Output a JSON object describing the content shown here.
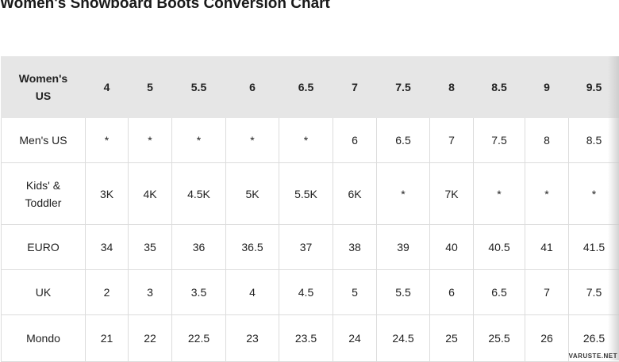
{
  "title": "Women's Snowboard Boots Conversion Chart",
  "header": {
    "label": "Women's US",
    "values": [
      "4",
      "5",
      "5.5",
      "6",
      "6.5",
      "7",
      "7.5",
      "8",
      "8.5",
      "9",
      "9.5"
    ]
  },
  "rows": [
    {
      "label": "Men's US",
      "values": [
        "*",
        "*",
        "*",
        "*",
        "*",
        "6",
        "6.5",
        "7",
        "7.5",
        "8",
        "8.5"
      ]
    },
    {
      "label": "Kids' & Toddler",
      "values": [
        "3K",
        "4K",
        "4.5K",
        "5K",
        "5.5K",
        "6K",
        "*",
        "7K",
        "*",
        "*",
        "*"
      ]
    },
    {
      "label": "EURO",
      "values": [
        "34",
        "35",
        "36",
        "36.5",
        "37",
        "38",
        "39",
        "40",
        "40.5",
        "41",
        "41.5"
      ]
    },
    {
      "label": "UK",
      "values": [
        "2",
        "3",
        "3.5",
        "4",
        "4.5",
        "5",
        "5.5",
        "6",
        "6.5",
        "7",
        "7.5"
      ]
    },
    {
      "label": "Mondo",
      "values": [
        "21",
        "22",
        "22.5",
        "23",
        "23.5",
        "24",
        "24.5",
        "25",
        "25.5",
        "26",
        "26.5"
      ]
    }
  ],
  "watermark": "VARUSTE.NET"
}
